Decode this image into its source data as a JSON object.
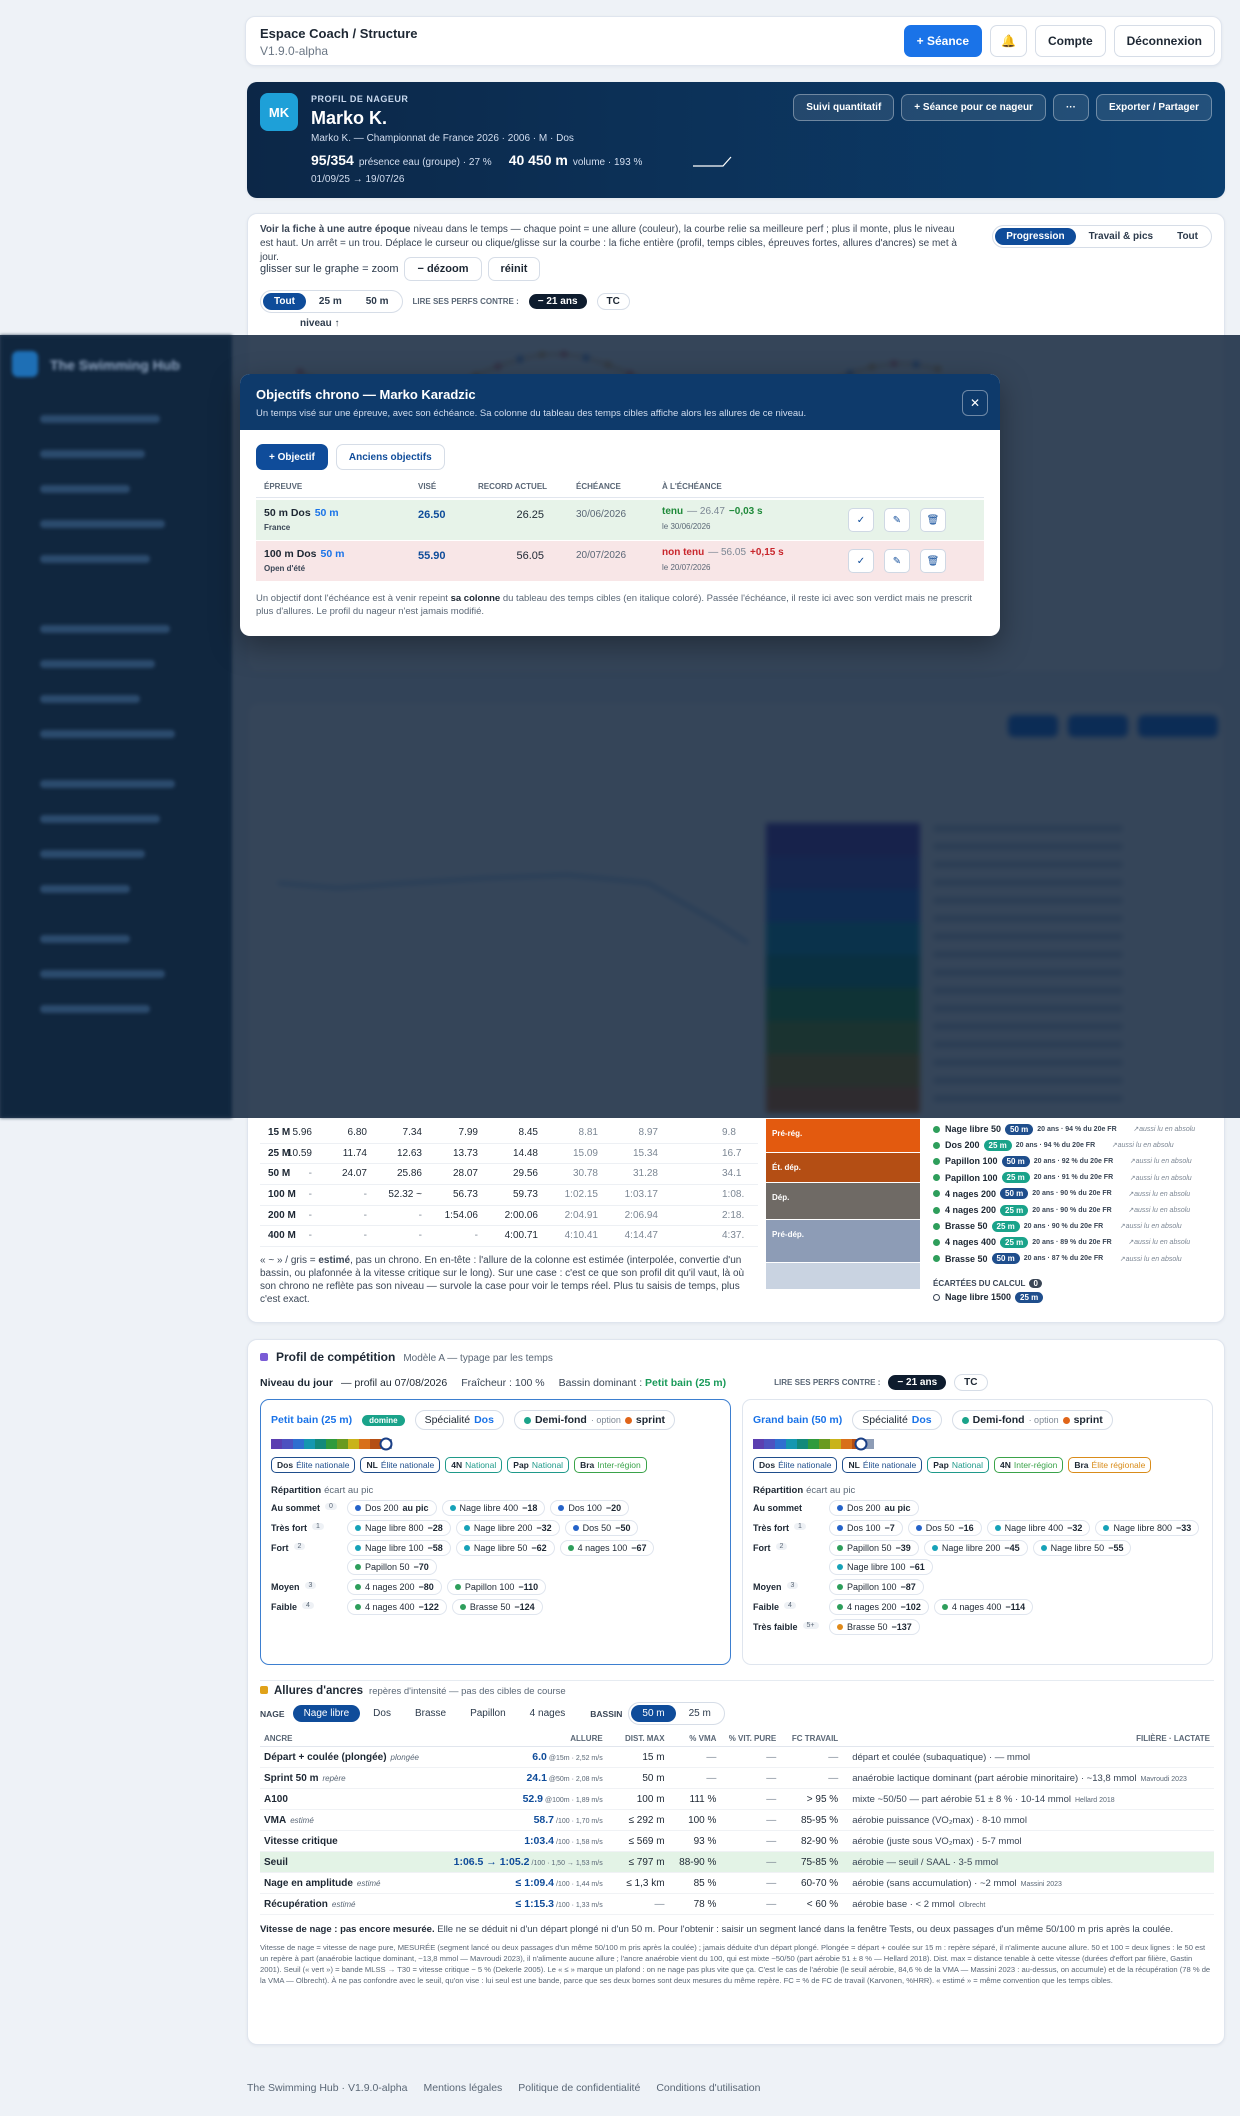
{
  "topbar": {
    "title": "Espace Coach / Structure",
    "version": "V1.9.0-alpha",
    "new_session": "+ Séance",
    "bell": "🔔",
    "account": "Compte",
    "logout": "Déconnexion"
  },
  "sidebar": {
    "brand": "The Swimming Hub"
  },
  "profile": {
    "initials": "MK",
    "kicker": "PROFIL DE NAGEUR",
    "name": "Marko K.",
    "meta": "Marko K. — Championnat de France 2026 · 2006 · M · Dos",
    "presence": "95/354",
    "presence_label": "présence eau (groupe) · 27 %",
    "volume": "40 450 m",
    "volume_label": "volume · 193 %",
    "dates": "01/09/25 → 19/07/26",
    "actions": [
      "Suivi quantitatif",
      "+ Séance pour ce nageur",
      "···",
      "Exporter / Partager"
    ]
  },
  "progression": {
    "help_bold": "Voir la fiche à une autre époque",
    "help": "niveau dans le temps — chaque point = une allure (couleur), la courbe relie sa meilleure perf ; plus il monte, plus le niveau est haut. Un arrêt = un trou. Déplace le curseur ou clique/glisse sur la courbe : la fiche entière (profil, temps cibles, épreuves fortes, allures d'ancres) se met à jour.",
    "tabs": [
      "Progression",
      "Travail & pics",
      "Tout"
    ],
    "zoom_hint": "glisser sur le graphe = zoom",
    "zoom_buttons": [
      "− dézoom",
      "réinit"
    ],
    "pool_tabs": [
      "Tout",
      "25 m",
      "50 m"
    ],
    "perf_label": "LIRE SES PERFS CONTRE :",
    "age_chip": "− 21 ans",
    "tc": "TC",
    "y_label": "niveau ↑"
  },
  "modal": {
    "title": "Objectifs chrono — Marko Karadzic",
    "subtitle": "Un temps visé sur une épreuve, avec son échéance. Sa colonne du tableau des temps cibles affiche alors les allures de ce niveau.",
    "close": "✕",
    "buttons": [
      "+ Objectif",
      "Anciens objectifs"
    ],
    "columns": [
      "ÉPREUVE",
      "VISÉ",
      "RECORD ACTUEL",
      "ÉCHÉANCE",
      "À L'ÉCHÉANCE"
    ],
    "rows": [
      {
        "event": "50 m Dos",
        "pool": "50 m",
        "sub": "France",
        "target": "26.50",
        "record": "26.25",
        "due": "30/06/2026",
        "status": "tenu",
        "detail": "— 26.47",
        "delta": "−0,03 s",
        "date": "le 30/06/2026"
      },
      {
        "event": "100 m Dos",
        "pool": "50 m",
        "sub": "Open d'été",
        "target": "55.90",
        "record": "56.05",
        "due": "20/07/2026",
        "status": "non tenu",
        "detail": "— 56.05",
        "delta": "+0,15 s",
        "date": "le 20/07/2026"
      }
    ],
    "actions": [
      "✓",
      "✎",
      "🗑"
    ],
    "note_a": "Un objectif dont l'échéance est à venir repeint ",
    "note_bold": "sa colonne",
    "note_b": " du tableau des temps cibles (en italique coloré). Passée l'échéance, il reste ici avec son verdict mais ne prescrit plus d'allures. Le profil du nageur n'est jamais modifié."
  },
  "times": {
    "rows": [
      {
        "label": "15 M",
        "cells": [
          "5.96",
          "6.80",
          "7.34",
          "7.99",
          "8.45",
          "8.81",
          "8.97",
          "9.8"
        ]
      },
      {
        "label": "25 M",
        "cells": [
          "10.59",
          "11.74",
          "12.63",
          "13.73",
          "14.48",
          "15.09",
          "15.34",
          "16.7"
        ]
      },
      {
        "label": "50 M",
        "cells": [
          "-",
          "24.07",
          "25.86",
          "28.07",
          "29.56",
          "30.78",
          "31.28",
          "34.1"
        ]
      },
      {
        "label": "100 M",
        "cells": [
          "-",
          "-",
          "52.32 ~",
          "56.73",
          "59.73",
          "1:02.15",
          "1:03.17",
          "1:08."
        ]
      },
      {
        "label": "200 M",
        "cells": [
          "-",
          "-",
          "-",
          "1:54.06",
          "2:00.06",
          "2:04.91",
          "2:06.94",
          "2:18."
        ]
      },
      {
        "label": "400 M",
        "cells": [
          "-",
          "-",
          "-",
          "-",
          "4:00.71",
          "4:10.41",
          "4:14.47",
          "4:37."
        ]
      }
    ],
    "note_a": "« ~ » / gris = ",
    "note_bold": "estimé",
    "note_b": ", pas un chrono. En en-tête : l'allure de la colonne est estimée (interpolée, convertie d'un bassin, ou plafonnée à la vitesse critique sur le long). Sur une case : c'est ce que son profil dit qu'il vaut, là où son chrono ne reflète pas son niveau — survole la case pour voir le temps réel. Plus tu saisis de temps, plus c'est exact."
  },
  "levels": {
    "bands": [
      {
        "label": "Pré-rég.",
        "color": "#e35a0f"
      },
      {
        "label": "Ét. dép.",
        "color": "#b44e14"
      },
      {
        "label": "Dép.",
        "color": "#6f6a65"
      },
      {
        "label": "Pré-dép.",
        "color": "#8d9cb6"
      },
      {
        "label": null,
        "color": "#c9d3e1"
      }
    ],
    "items": [
      {
        "name": "Nage libre 50",
        "pool": "50 m",
        "info": "20 ans · 94 % du 20e FR",
        "abs": "↗aussi lu en absolu"
      },
      {
        "name": "Dos 200",
        "pool": "25 m",
        "info": "20 ans · 94 % du 20e FR",
        "abs": "↗aussi lu en absolu"
      },
      {
        "name": "Papillon 100",
        "pool": "50 m",
        "info": "20 ans · 92 % du 20e FR",
        "abs": "↗aussi lu en absolu"
      },
      {
        "name": "Papillon 100",
        "pool": "25 m",
        "info": "20 ans · 91 % du 20e FR",
        "abs": "↗aussi lu en absolu"
      },
      {
        "name": "4 nages 200",
        "pool": "50 m",
        "info": "20 ans · 90 % du 20e FR",
        "abs": "↗aussi lu en absolu"
      },
      {
        "name": "4 nages 200",
        "pool": "25 m",
        "info": "20 ans · 90 % du 20e FR",
        "abs": "↗aussi lu en absolu"
      },
      {
        "name": "Brasse 50",
        "pool": "25 m",
        "info": "20 ans · 90 % du 20e FR",
        "abs": "↗aussi lu en absolu"
      },
      {
        "name": "4 nages 400",
        "pool": "25 m",
        "info": "20 ans · 89 % du 20e FR",
        "abs": "↗aussi lu en absolu"
      },
      {
        "name": "Brasse 50",
        "pool": "50 m",
        "info": "20 ans · 87 % du 20e FR",
        "abs": "↗aussi lu en absolu"
      }
    ],
    "excluded_title": "ÉCARTÉES DU CALCUL",
    "excluded_count": "0",
    "excluded_item": "Nage libre 1500",
    "excluded_pool": "25 m"
  },
  "competition": {
    "title": "Profil de compétition",
    "subtitle": "Modèle A — typage par les temps",
    "day_bold": "Niveau du jour",
    "day_date": "— profil au 07/08/2026",
    "freshness": "Fraîcheur : 100 %",
    "dominant_label": "Bassin dominant : ",
    "dominant": "Petit bain (25 m)",
    "perf_label": "LIRE SES PERFS CONTRE :",
    "age_chip": "− 21 ans",
    "tc": "TC",
    "panels": [
      {
        "title": "Petit bain (25 m)",
        "badge": "domine",
        "spec_label": "Spécialité",
        "spec": "Dos",
        "type": "Demi-fond",
        "option": "· option",
        "option_type": "sprint",
        "tags": [
          {
            "code": "Dos",
            "level": "Élite nationale",
            "color": "#1f4e8c"
          },
          {
            "code": "NL",
            "level": "Élite nationale",
            "color": "#1f4e8c"
          },
          {
            "code": "4N",
            "level": "National",
            "color": "#1f9a8a"
          },
          {
            "code": "Pap",
            "level": "National",
            "color": "#1f9a8a"
          },
          {
            "code": "Bra",
            "level": "Inter-région",
            "color": "#3aa34a"
          }
        ],
        "rep_title": "Répartition",
        "rep_sub": "écart au pic",
        "rows": [
          {
            "label": "Au sommet",
            "count": "0",
            "items": [
              {
                "name": "Dos 200",
                "gap": "au pic",
                "color": "#2563c9"
              },
              {
                "name": "Nage libre 400",
                "gap": "−18",
                "color": "#17a2b8"
              },
              {
                "name": "Dos 100",
                "gap": "−20",
                "color": "#2563c9"
              }
            ]
          },
          {
            "label": "Très fort",
            "count": "1",
            "items": [
              {
                "name": "Nage libre 800",
                "gap": "−28",
                "color": "#17a2b8"
              },
              {
                "name": "Nage libre 200",
                "gap": "−32",
                "color": "#17a2b8"
              },
              {
                "name": "Dos 50",
                "gap": "−50",
                "color": "#2563c9"
              }
            ]
          },
          {
            "label": "Fort",
            "count": "2",
            "items": [
              {
                "name": "Nage libre 100",
                "gap": "−58",
                "color": "#17a2b8"
              },
              {
                "name": "Nage libre 50",
                "gap": "−62",
                "color": "#17a2b8"
              },
              {
                "name": "4 nages 100",
                "gap": "−67",
                "color": "#2e9e5b"
              },
              {
                "name": "Papillon 50",
                "gap": "−70",
                "color": "#2e9e5b"
              }
            ]
          },
          {
            "label": "Moyen",
            "count": "3",
            "items": [
              {
                "name": "4 nages 200",
                "gap": "−80",
                "color": "#2e9e5b"
              },
              {
                "name": "Papillon 100",
                "gap": "−110",
                "color": "#2e9e5b"
              }
            ]
          },
          {
            "label": "Faible",
            "count": "4",
            "items": [
              {
                "name": "4 nages 400",
                "gap": "−122",
                "color": "#2e9e5b"
              },
              {
                "name": "Brasse 50",
                "gap": "−124",
                "color": "#2e9e5b"
              }
            ]
          }
        ]
      },
      {
        "title": "Grand bain (50 m)",
        "badge": null,
        "spec_label": "Spécialité",
        "spec": "Dos",
        "type": "Demi-fond",
        "option": "· option",
        "option_type": "sprint",
        "tags": [
          {
            "code": "Dos",
            "level": "Élite nationale",
            "color": "#1f4e8c"
          },
          {
            "code": "NL",
            "level": "Élite nationale",
            "color": "#1f4e8c"
          },
          {
            "code": "Pap",
            "level": "National",
            "color": "#1f9a8a"
          },
          {
            "code": "4N",
            "level": "Inter-région",
            "color": "#3aa34a"
          },
          {
            "code": "Bra",
            "level": "Élite régionale",
            "color": "#d98c1a"
          }
        ],
        "rep_title": "Répartition",
        "rep_sub": "écart au pic",
        "rows": [
          {
            "label": "Au sommet",
            "count": null,
            "items": [
              {
                "name": "Dos 200",
                "gap": "au pic",
                "color": "#2563c9"
              }
            ]
          },
          {
            "label": "Très fort",
            "count": "1",
            "items": [
              {
                "name": "Dos 100",
                "gap": "−7",
                "color": "#2563c9"
              },
              {
                "name": "Dos 50",
                "gap": "−16",
                "color": "#2563c9"
              },
              {
                "name": "Nage libre 400",
                "gap": "−32",
                "color": "#17a2b8"
              },
              {
                "name": "Nage libre 800",
                "gap": "−33",
                "color": "#17a2b8"
              }
            ]
          },
          {
            "label": "Fort",
            "count": "2",
            "items": [
              {
                "name": "Papillon 50",
                "gap": "−39",
                "color": "#2e9e5b"
              },
              {
                "name": "Nage libre 200",
                "gap": "−45",
                "color": "#17a2b8"
              },
              {
                "name": "Nage libre 50",
                "gap": "−55",
                "color": "#17a2b8"
              },
              {
                "name": "Nage libre 100",
                "gap": "−61",
                "color": "#17a2b8"
              }
            ]
          },
          {
            "label": "Moyen",
            "count": "3",
            "items": [
              {
                "name": "Papillon 100",
                "gap": "−87",
                "color": "#2e9e5b"
              }
            ]
          },
          {
            "label": "Faible",
            "count": "4",
            "items": [
              {
                "name": "4 nages 200",
                "gap": "−102",
                "color": "#2e9e5b"
              },
              {
                "name": "4 nages 400",
                "gap": "−114",
                "color": "#2e9e5b"
              }
            ]
          },
          {
            "label": "Très faible",
            "count": "5+",
            "items": [
              {
                "name": "Brasse 50",
                "gap": "−137",
                "color": "#e08a1a"
              }
            ]
          }
        ]
      }
    ]
  },
  "anchors": {
    "title": "Allures d'ancres",
    "subtitle": "repères d'intensité — pas des cibles de course",
    "stroke_label": "NAGE",
    "strokes": [
      "Nage libre",
      "Dos",
      "Brasse",
      "Papillon",
      "4 nages"
    ],
    "pool_label": "BASSIN",
    "pools": [
      "50 m",
      "25 m"
    ],
    "columns": [
      "ANCRE",
      "ALLURE",
      "DIST. MAX",
      "% VMA",
      "% VIT. PURE",
      "FC TRAVAIL",
      "FILIÈRE · LACTATE"
    ],
    "rows": [
      {
        "name": "Départ + coulée (plongée)",
        "tag": "plongée",
        "pace": "6.0",
        "pace_sub": "@15m · 2,52 m/s",
        "dist": "15 m",
        "vma": "—",
        "pure": "—",
        "hr": "—",
        "zone": "départ et coulée (subaquatique) · — mmol",
        "ref": null
      },
      {
        "name": "Sprint 50 m",
        "tag": "repère",
        "pace": "24.1",
        "pace_sub": "@50m · 2,08 m/s",
        "dist": "50 m",
        "vma": "—",
        "pure": "—",
        "hr": "—",
        "zone": "anaérobie lactique dominant (part aérobie minoritaire) · ~13,8 mmol",
        "ref": "Mavroudi 2023"
      },
      {
        "name": "A100",
        "tag": null,
        "pace": "52.9",
        "pace_sub": "@100m · 1,89 m/s",
        "dist": "100 m",
        "vma": "111 %",
        "pure": "—",
        "hr": "> 95 %",
        "zone": "mixte ~50/50 — part aérobie 51 ± 8 % · 10-14 mmol",
        "ref": "Hellard 2018"
      },
      {
        "name": "VMA",
        "tag": "estimé",
        "pace": "58.7",
        "pace_sub": "/100 · 1,70 m/s",
        "dist": "≤ 292 m",
        "vma": "100 %",
        "pure": "—",
        "hr": "85-95 %",
        "zone": "aérobie puissance (VO₂max) · 8-10 mmol",
        "ref": null
      },
      {
        "name": "Vitesse critique",
        "tag": null,
        "pace": "1:03.4",
        "pace_sub": "/100 · 1,58 m/s",
        "dist": "≤ 569 m",
        "vma": "93 %",
        "pure": "—",
        "hr": "82-90 %",
        "zone": "aérobie (juste sous VO₂max) · 5-7 mmol",
        "ref": null
      },
      {
        "name": "Seuil",
        "tag": null,
        "pace": "1:06.5 → 1:05.2",
        "pace_sub": "/100 · 1,50 → 1,53 m/s",
        "dist": "≤ 797 m",
        "vma": "88-90 %",
        "pure": "—",
        "hr": "75-85 %",
        "zone": "aérobie — seuil / SAAL · 3-5 mmol",
        "ref": null
      },
      {
        "name": "Nage en amplitude",
        "tag": "estimé",
        "pace": "≤ 1:09.4",
        "pace_sub": "/100 · 1,44 m/s",
        "dist": "≤ 1,3 km",
        "vma": "85 %",
        "pure": "—",
        "hr": "60-70 %",
        "zone": "aérobie (sans accumulation) · ~2 mmol",
        "ref": "Massini 2023"
      },
      {
        "name": "Récupération",
        "tag": "estimé",
        "pace": "≤ 1:15.3",
        "pace_sub": "/100 · 1,33 m/s",
        "dist": "—",
        "vma": "78 %",
        "pure": "—",
        "hr": "< 60 %",
        "zone": "aérobie base · < 2 mmol",
        "ref": "Olbrecht"
      }
    ],
    "note_bold": "Vitesse de nage : pas encore mesurée.",
    "note": " Elle ne se déduit ni d'un départ plongé ni d'un 50 m. Pour l'obtenir : saisir un segment lancé dans la fenêtre Tests, ou deux passages d'un même 50/100 m pris après la coulée.",
    "footnote": "Vitesse de nage = vitesse de nage pure, MESURÉE (segment lancé ou deux passages d'un même 50/100 m pris après la coulée) ; jamais déduite d'un départ plongé. Plongée = départ + coulée sur 15 m : repère séparé, il n'alimente aucune allure. 50 et 100 = deux lignes : le 50 est un repère à part (anaérobie lactique dominant, ~13,8 mmol — Mavroudi 2023), il n'alimente aucune allure ; l'ancre anaérobie vient du 100, qui est mixte ~50/50 (part aérobie 51 ± 8 % — Hellard 2018). Dist. max = distance tenable à cette vitesse (durées d'effort par filière, Gastin 2001). Seuil (« vert ») = bande MLSS → T30 = vitesse critique − 5 % (Dekerle 2005). Le « ≤ » marque un plafond : on ne nage pas plus vite que ça. C'est le cas de l'aérobie (le seuil aérobie, 84,6 % de la VMA — Massini 2023 : au-dessus, on accumule) et de la récupération (78 % de la VMA — Olbrecht). À ne pas confondre avec le seuil, qu'on vise : lui seul est une bande, parce que ses deux bornes sont deux mesures du même repère. FC = % de FC de travail (Karvonen, %HRR). « estimé » = même convention que les temps cibles."
  },
  "footer": {
    "links": [
      "The Swimming Hub · V1.9.0-alpha",
      "Mentions légales",
      "Politique de confidentialité",
      "Conditions d'utilisation"
    ]
  }
}
